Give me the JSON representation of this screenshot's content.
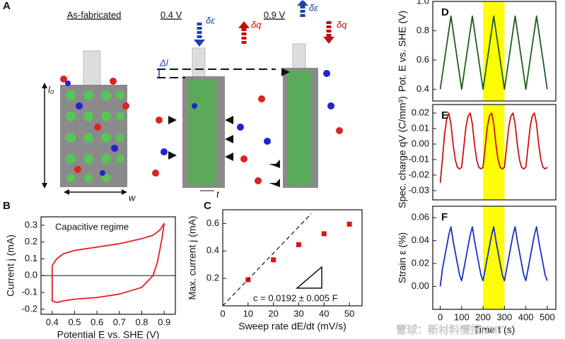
{
  "illustration": {
    "panel": "A",
    "state_1": "As-fabricated",
    "state_2": "0.4 V",
    "state_3": "0.9 V",
    "strain_symbol_1": "δε",
    "charge_symbol_1": "δq",
    "strain_symbol_2": "δε",
    "charge_symbol_2": "δq",
    "delta_length": "Δl",
    "length": "l₀",
    "width": "w",
    "thickness": "t"
  },
  "watermark": "雪球：新材料情报NMT",
  "chart_data": [
    {
      "type": "line",
      "panel": "B",
      "xlabel": "Potential E vs. SHE (V)",
      "ylabel": "Current j (mA)",
      "annotation": "Capacitive regime",
      "zero_line": true,
      "xlim": [
        0.35,
        0.95
      ],
      "ylim": [
        -0.23,
        0.35
      ],
      "xticks": [
        0.4,
        0.5,
        0.6,
        0.7,
        0.8,
        0.9
      ],
      "yticks": [
        -0.2,
        -0.1,
        {
          "value": 0,
          "label": "0.0"
        },
        0.1,
        0.2,
        0.3
      ],
      "x": [
        0.4,
        0.42,
        0.45,
        0.5,
        0.6,
        0.7,
        0.8,
        0.85,
        0.88,
        0.9,
        0.89,
        0.87,
        0.85,
        0.8,
        0.7,
        0.6,
        0.5,
        0.45,
        0.42,
        0.4,
        0.4
      ],
      "series": [
        {
          "color": "#e02020",
          "values": [
            0.06,
            0.1,
            0.13,
            0.15,
            0.17,
            0.19,
            0.22,
            0.24,
            0.27,
            0.31,
            0.22,
            0.08,
            0.0,
            -0.07,
            -0.11,
            -0.13,
            -0.14,
            -0.15,
            -0.16,
            -0.15,
            0.06
          ]
        }
      ]
    },
    {
      "type": "scatter",
      "panel": "C",
      "xlabel": "Sweep rate dE/dt (mV/s)",
      "ylabel": "Max. current j (mA)",
      "annotation": "c = 0.0192 ± 0.005 F",
      "xlim": [
        0,
        55
      ],
      "ylim": [
        0,
        0.7
      ],
      "xticks": [
        0,
        10,
        20,
        30,
        40,
        50
      ],
      "yticks": [
        0.2,
        0.4,
        0.6
      ],
      "series": [
        {
          "type": "scatter",
          "color": "#e01515",
          "x": [
            10,
            20,
            30,
            40,
            50
          ],
          "values": [
            0.19,
            0.335,
            0.445,
            0.525,
            0.595
          ]
        },
        {
          "type": "line",
          "dashed": true,
          "color": "#222222",
          "x": [
            0,
            35
          ],
          "values": [
            0,
            0.672
          ]
        }
      ]
    },
    {
      "type": "line",
      "panel": "D",
      "ylabel": "Pot. E vs. SHE (V)",
      "highlight": [
        200,
        300
      ],
      "highlight_color": "#ffff00",
      "xlim": [
        -35,
        540
      ],
      "ylim": [
        0.32,
        1.0
      ],
      "yticks": [
        0.4,
        0.6,
        0.8,
        {
          "value": 1,
          "label": "1.0"
        }
      ],
      "x": [
        0,
        50,
        100,
        150,
        200,
        250,
        300,
        350,
        400,
        450,
        500
      ],
      "series": [
        {
          "color": "#1f5c1f",
          "values": [
            0.4,
            0.9,
            0.4,
            0.9,
            0.4,
            0.9,
            0.4,
            0.9,
            0.4,
            0.9,
            0.4
          ]
        }
      ]
    },
    {
      "type": "line",
      "panel": "E",
      "ylabel": "Spec. charge qV (C/mm³)",
      "highlight": [
        200,
        300
      ],
      "highlight_color": "#ffff00",
      "xlim": [
        -35,
        540
      ],
      "ylim": [
        -0.036,
        0.0255
      ],
      "yticks": [
        -0.03,
        -0.02,
        -0.01,
        {
          "value": 0,
          "label": "0.00"
        },
        0.01,
        0.02
      ],
      "x": [
        0,
        10,
        20,
        30,
        40,
        50,
        60,
        70,
        80,
        90,
        100,
        110,
        120,
        130,
        140,
        150,
        160,
        170,
        180,
        190,
        200,
        210,
        220,
        230,
        240,
        250,
        260,
        270,
        280,
        290,
        300,
        310,
        320,
        330,
        340,
        350,
        360,
        370,
        380,
        390,
        400,
        410,
        420,
        430,
        440,
        450,
        460,
        470,
        480,
        490,
        500
      ],
      "series": [
        {
          "color": "#d01010",
          "values": [
            -0.025,
            -0.01,
            0.006,
            0.016,
            0.02,
            0.013,
            0.0,
            -0.01,
            -0.015,
            -0.016,
            -0.015,
            -0.002,
            0.011,
            0.018,
            0.02,
            0.013,
            0.0,
            -0.01,
            -0.015,
            -0.016,
            -0.015,
            -0.002,
            0.011,
            0.018,
            0.02,
            0.013,
            0.0,
            -0.01,
            -0.015,
            -0.016,
            -0.015,
            -0.002,
            0.011,
            0.018,
            0.02,
            0.013,
            0.0,
            -0.01,
            -0.015,
            -0.016,
            -0.015,
            -0.002,
            0.011,
            0.018,
            0.02,
            0.013,
            0.0,
            -0.01,
            -0.015,
            -0.016,
            -0.015
          ]
        }
      ]
    },
    {
      "type": "line",
      "panel": "F",
      "xlabel": "Time t (s)",
      "ylabel": "Strain ε (%)",
      "highlight": [
        200,
        300
      ],
      "highlight_color": "#ffff00",
      "xlim": [
        -35,
        540
      ],
      "ylim": [
        -0.02,
        0.07
      ],
      "xticks": [
        0,
        100,
        200,
        300,
        400,
        500
      ],
      "yticks": [
        {
          "value": 0,
          "label": "0.00"
        },
        0.02,
        0.04,
        0.06
      ],
      "x": [
        0,
        10,
        20,
        30,
        40,
        50,
        60,
        70,
        80,
        90,
        100,
        110,
        120,
        130,
        140,
        150,
        160,
        170,
        180,
        190,
        200,
        210,
        220,
        230,
        240,
        250,
        260,
        270,
        280,
        290,
        300,
        310,
        320,
        330,
        340,
        350,
        360,
        370,
        380,
        390,
        400,
        410,
        420,
        430,
        440,
        450,
        460,
        470,
        480,
        490,
        500
      ],
      "series": [
        {
          "color": "#1a2fbf",
          "values": [
            0.0,
            0.015,
            0.025,
            0.035,
            0.045,
            0.052,
            0.04,
            0.03,
            0.02,
            0.01,
            0.005,
            0.015,
            0.025,
            0.035,
            0.045,
            0.052,
            0.04,
            0.03,
            0.02,
            0.01,
            0.005,
            0.015,
            0.025,
            0.035,
            0.045,
            0.052,
            0.04,
            0.03,
            0.02,
            0.01,
            0.005,
            0.015,
            0.025,
            0.035,
            0.045,
            0.052,
            0.04,
            0.03,
            0.02,
            0.01,
            0.005,
            0.015,
            0.025,
            0.035,
            0.045,
            0.052,
            0.04,
            0.03,
            0.02,
            0.01,
            0.005
          ]
        }
      ]
    }
  ]
}
